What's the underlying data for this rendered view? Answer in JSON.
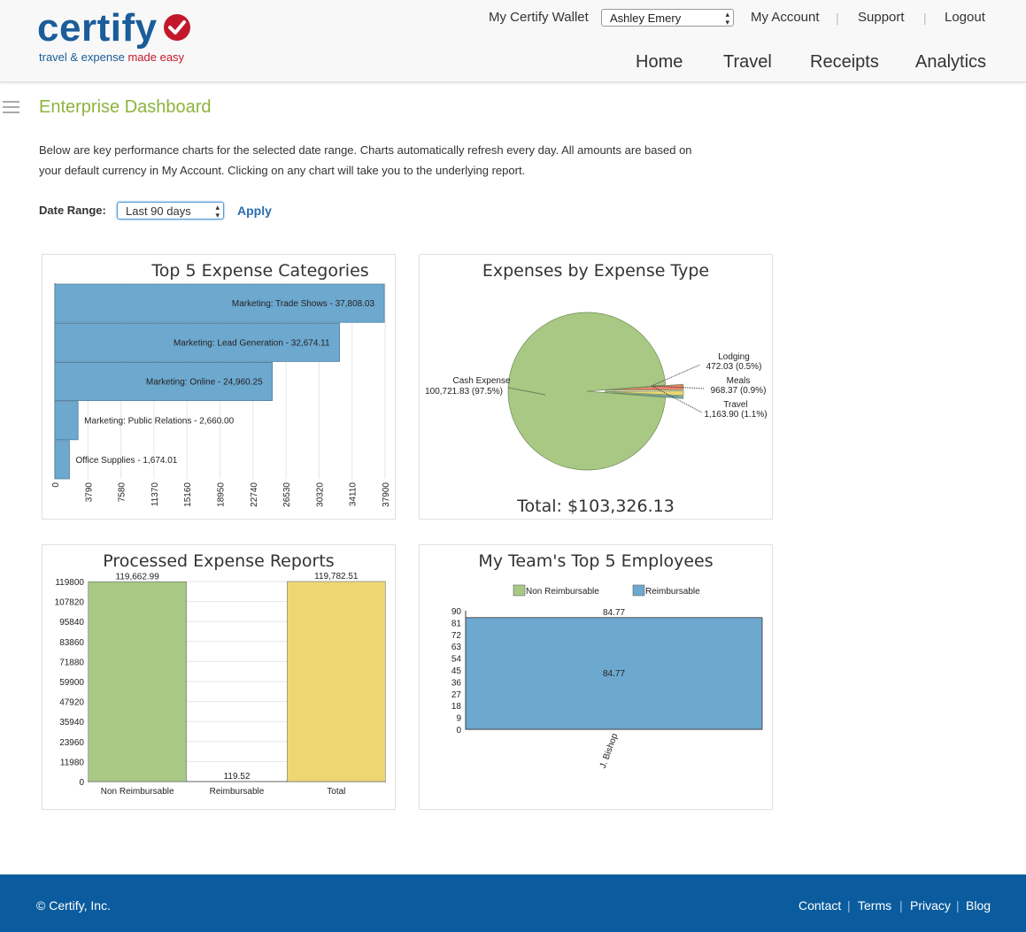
{
  "header": {
    "logo_text": "certify",
    "tagline_main": "travel & expense ",
    "tagline_accent": "made easy",
    "wallet_label": "My Certify Wallet",
    "wallet_selected": "Ashley Emery",
    "my_account": "My Account",
    "support": "Support",
    "logout": "Logout",
    "nav": [
      "Home",
      "Travel",
      "Receipts",
      "Analytics"
    ]
  },
  "page": {
    "title": "Enterprise Dashboard",
    "intro_line1": "Below are key performance charts for the selected date range. Charts automatically refresh every day. All amounts are based on",
    "intro_line2": "your default currency in My Account. Clicking on any chart will take you to the underlying report.",
    "date_range_label": "Date Range:",
    "date_range_selected": "Last 90 days",
    "apply": "Apply"
  },
  "chart_data": [
    {
      "type": "bar",
      "orientation": "horizontal",
      "title": "Top 5 Expense Categories",
      "categories": [
        "Marketing: Trade Shows",
        "Marketing: Lead Generation",
        "Marketing: Online",
        "Marketing: Public Relations",
        "Office Supplies"
      ],
      "values": [
        37808.03,
        32674.11,
        24960.25,
        2660.0,
        1674.01
      ],
      "labels": [
        "Marketing: Trade Shows - 37,808.03",
        "Marketing: Lead Generation - 32,674.11",
        "Marketing: Online - 24,960.25",
        "Marketing: Public Relations - 2,660.00",
        "Office Supplies - 1,674.01"
      ],
      "xlim": [
        0,
        37900
      ],
      "ticks": [
        "0",
        "3790",
        "7580",
        "11370",
        "15160",
        "18950",
        "22740",
        "26530",
        "30320",
        "34110",
        "37900"
      ],
      "color": "#6da8cf",
      "grid": true
    },
    {
      "type": "pie",
      "title": "Expenses by Expense Type",
      "slices": [
        {
          "name": "Cash Expense",
          "value": 100721.83,
          "label": "Cash Expense",
          "pct_label": "100,721.83 (97.5%)",
          "color": "#a8c884"
        },
        {
          "name": "Lodging",
          "value": 472.03,
          "label": "Lodging",
          "pct_label": "472.03 (0.5%)",
          "color": "#6da8cf"
        },
        {
          "name": "Meals",
          "value": 968.37,
          "label": "Meals",
          "pct_label": "968.37 (0.9%)",
          "color": "#ecd774"
        },
        {
          "name": "Travel",
          "value": 1163.9,
          "label": "Travel",
          "pct_label": "1,163.90 (1.1%)",
          "color": "#e8836a"
        }
      ],
      "total_label": "Total: $103,326.13"
    },
    {
      "type": "bar",
      "title": "Processed Expense Reports",
      "categories": [
        "Non Reimbursable",
        "Reimbursable",
        "Total"
      ],
      "values": [
        119662.99,
        119.52,
        119782.51
      ],
      "labels": [
        "119,662.99",
        "119.52",
        "119,782.51"
      ],
      "colors": [
        "#a8c884",
        "#6da8cf",
        "#ecd774"
      ],
      "ylim": [
        0,
        119800
      ],
      "ticks": [
        "0",
        "11980",
        "23960",
        "35940",
        "47920",
        "59900",
        "71880",
        "83860",
        "95840",
        "107820",
        "119800"
      ],
      "grid": true
    },
    {
      "type": "bar",
      "title": "My Team's Top 5 Employees",
      "categories": [
        "J. Bishop"
      ],
      "series": [
        {
          "name": "Non Reimbursable",
          "values": [
            0
          ],
          "color": "#a8c884"
        },
        {
          "name": "Reimbursable",
          "values": [
            84.77
          ],
          "color": "#6da8cf"
        }
      ],
      "total_labels": [
        "84.77"
      ],
      "segment_labels": [
        "84.77"
      ],
      "ylim": [
        0,
        90
      ],
      "ticks": [
        "0",
        "9",
        "18",
        "27",
        "36",
        "45",
        "54",
        "63",
        "72",
        "81",
        "90"
      ],
      "legend": "top"
    }
  ],
  "footer": {
    "copyright": "© Certify, Inc.",
    "links": [
      "Contact",
      "Terms",
      "Privacy",
      "Blog"
    ]
  }
}
